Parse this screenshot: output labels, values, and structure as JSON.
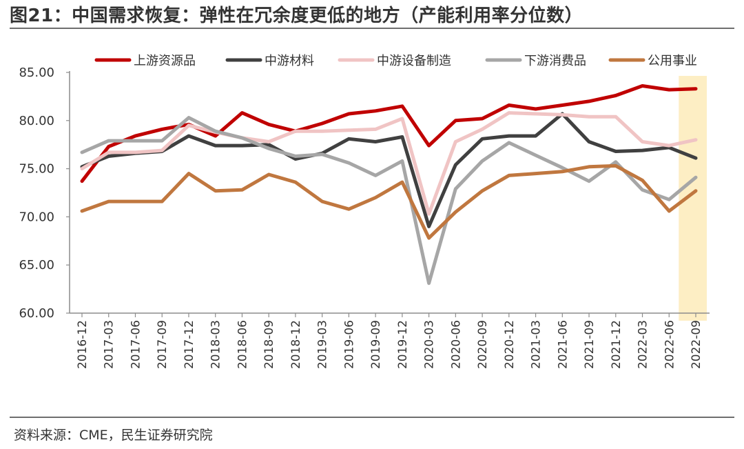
{
  "title": "图21：中国需求恢复：弹性在冗余度更低的地方（产能利用率分位数）",
  "source": "资料来源：CME，民生证券研究院",
  "chart_data": {
    "type": "line",
    "title": "图21：中国需求恢复：弹性在冗余度更低的地方（产能利用率分位数）",
    "xlabel": "",
    "ylabel": "",
    "ylim": [
      60,
      85
    ],
    "yticks": [
      "60.00",
      "65.00",
      "70.00",
      "75.00",
      "80.00",
      "85.00"
    ],
    "grid": false,
    "legend_position": "top",
    "highlight": {
      "from": "2022-06",
      "to": "2022-09",
      "color": "#fdeec4"
    },
    "categories": [
      "2016-12",
      "2017-03",
      "2017-06",
      "2017-09",
      "2017-12",
      "2018-03",
      "2018-06",
      "2018-09",
      "2018-12",
      "2019-03",
      "2019-06",
      "2019-09",
      "2019-12",
      "2020-03",
      "2020-06",
      "2020-09",
      "2020-12",
      "2021-03",
      "2021-06",
      "2021-09",
      "2021-12",
      "2022-03",
      "2022-06",
      "2022-09"
    ],
    "series": [
      {
        "name": "上游资源品",
        "color": "#c00000",
        "values": [
          73.7,
          77.3,
          78.4,
          79.1,
          79.6,
          78.4,
          80.8,
          79.6,
          78.9,
          79.7,
          80.7,
          81.0,
          81.5,
          77.4,
          80.0,
          80.2,
          81.6,
          81.2,
          81.6,
          82.0,
          82.6,
          83.6,
          83.2,
          83.3
        ]
      },
      {
        "name": "中游材料",
        "color": "#404040",
        "values": [
          75.2,
          76.3,
          76.6,
          76.8,
          78.4,
          77.4,
          77.4,
          77.5,
          76.0,
          76.6,
          78.1,
          77.8,
          78.3,
          69.0,
          75.4,
          78.1,
          78.4,
          78.4,
          80.7,
          77.8,
          76.8,
          76.9,
          77.2,
          76.1
        ]
      },
      {
        "name": "中游设备制造",
        "color": "#f0c4c4",
        "values": [
          75.0,
          76.7,
          76.7,
          76.9,
          79.5,
          78.8,
          78.2,
          77.8,
          78.9,
          78.9,
          79.0,
          79.1,
          80.2,
          70.3,
          77.8,
          79.1,
          80.8,
          80.7,
          80.6,
          80.4,
          80.4,
          77.8,
          77.4,
          78.0
        ]
      },
      {
        "name": "下游消费品",
        "color": "#a6a6a6",
        "values": [
          76.7,
          77.9,
          77.9,
          77.9,
          80.3,
          78.9,
          78.2,
          77.1,
          76.3,
          76.5,
          75.6,
          74.3,
          75.8,
          63.1,
          72.9,
          75.8,
          77.7,
          76.4,
          75.1,
          73.7,
          75.7,
          72.8,
          71.8,
          74.1
        ]
      },
      {
        "name": "公用事业",
        "color": "#c0773f",
        "values": [
          70.6,
          71.6,
          71.6,
          71.6,
          74.5,
          72.7,
          72.8,
          74.4,
          73.6,
          71.6,
          70.8,
          72.0,
          73.6,
          67.8,
          70.5,
          72.7,
          74.3,
          74.5,
          74.7,
          75.2,
          75.3,
          73.8,
          70.6,
          72.7
        ]
      }
    ]
  }
}
